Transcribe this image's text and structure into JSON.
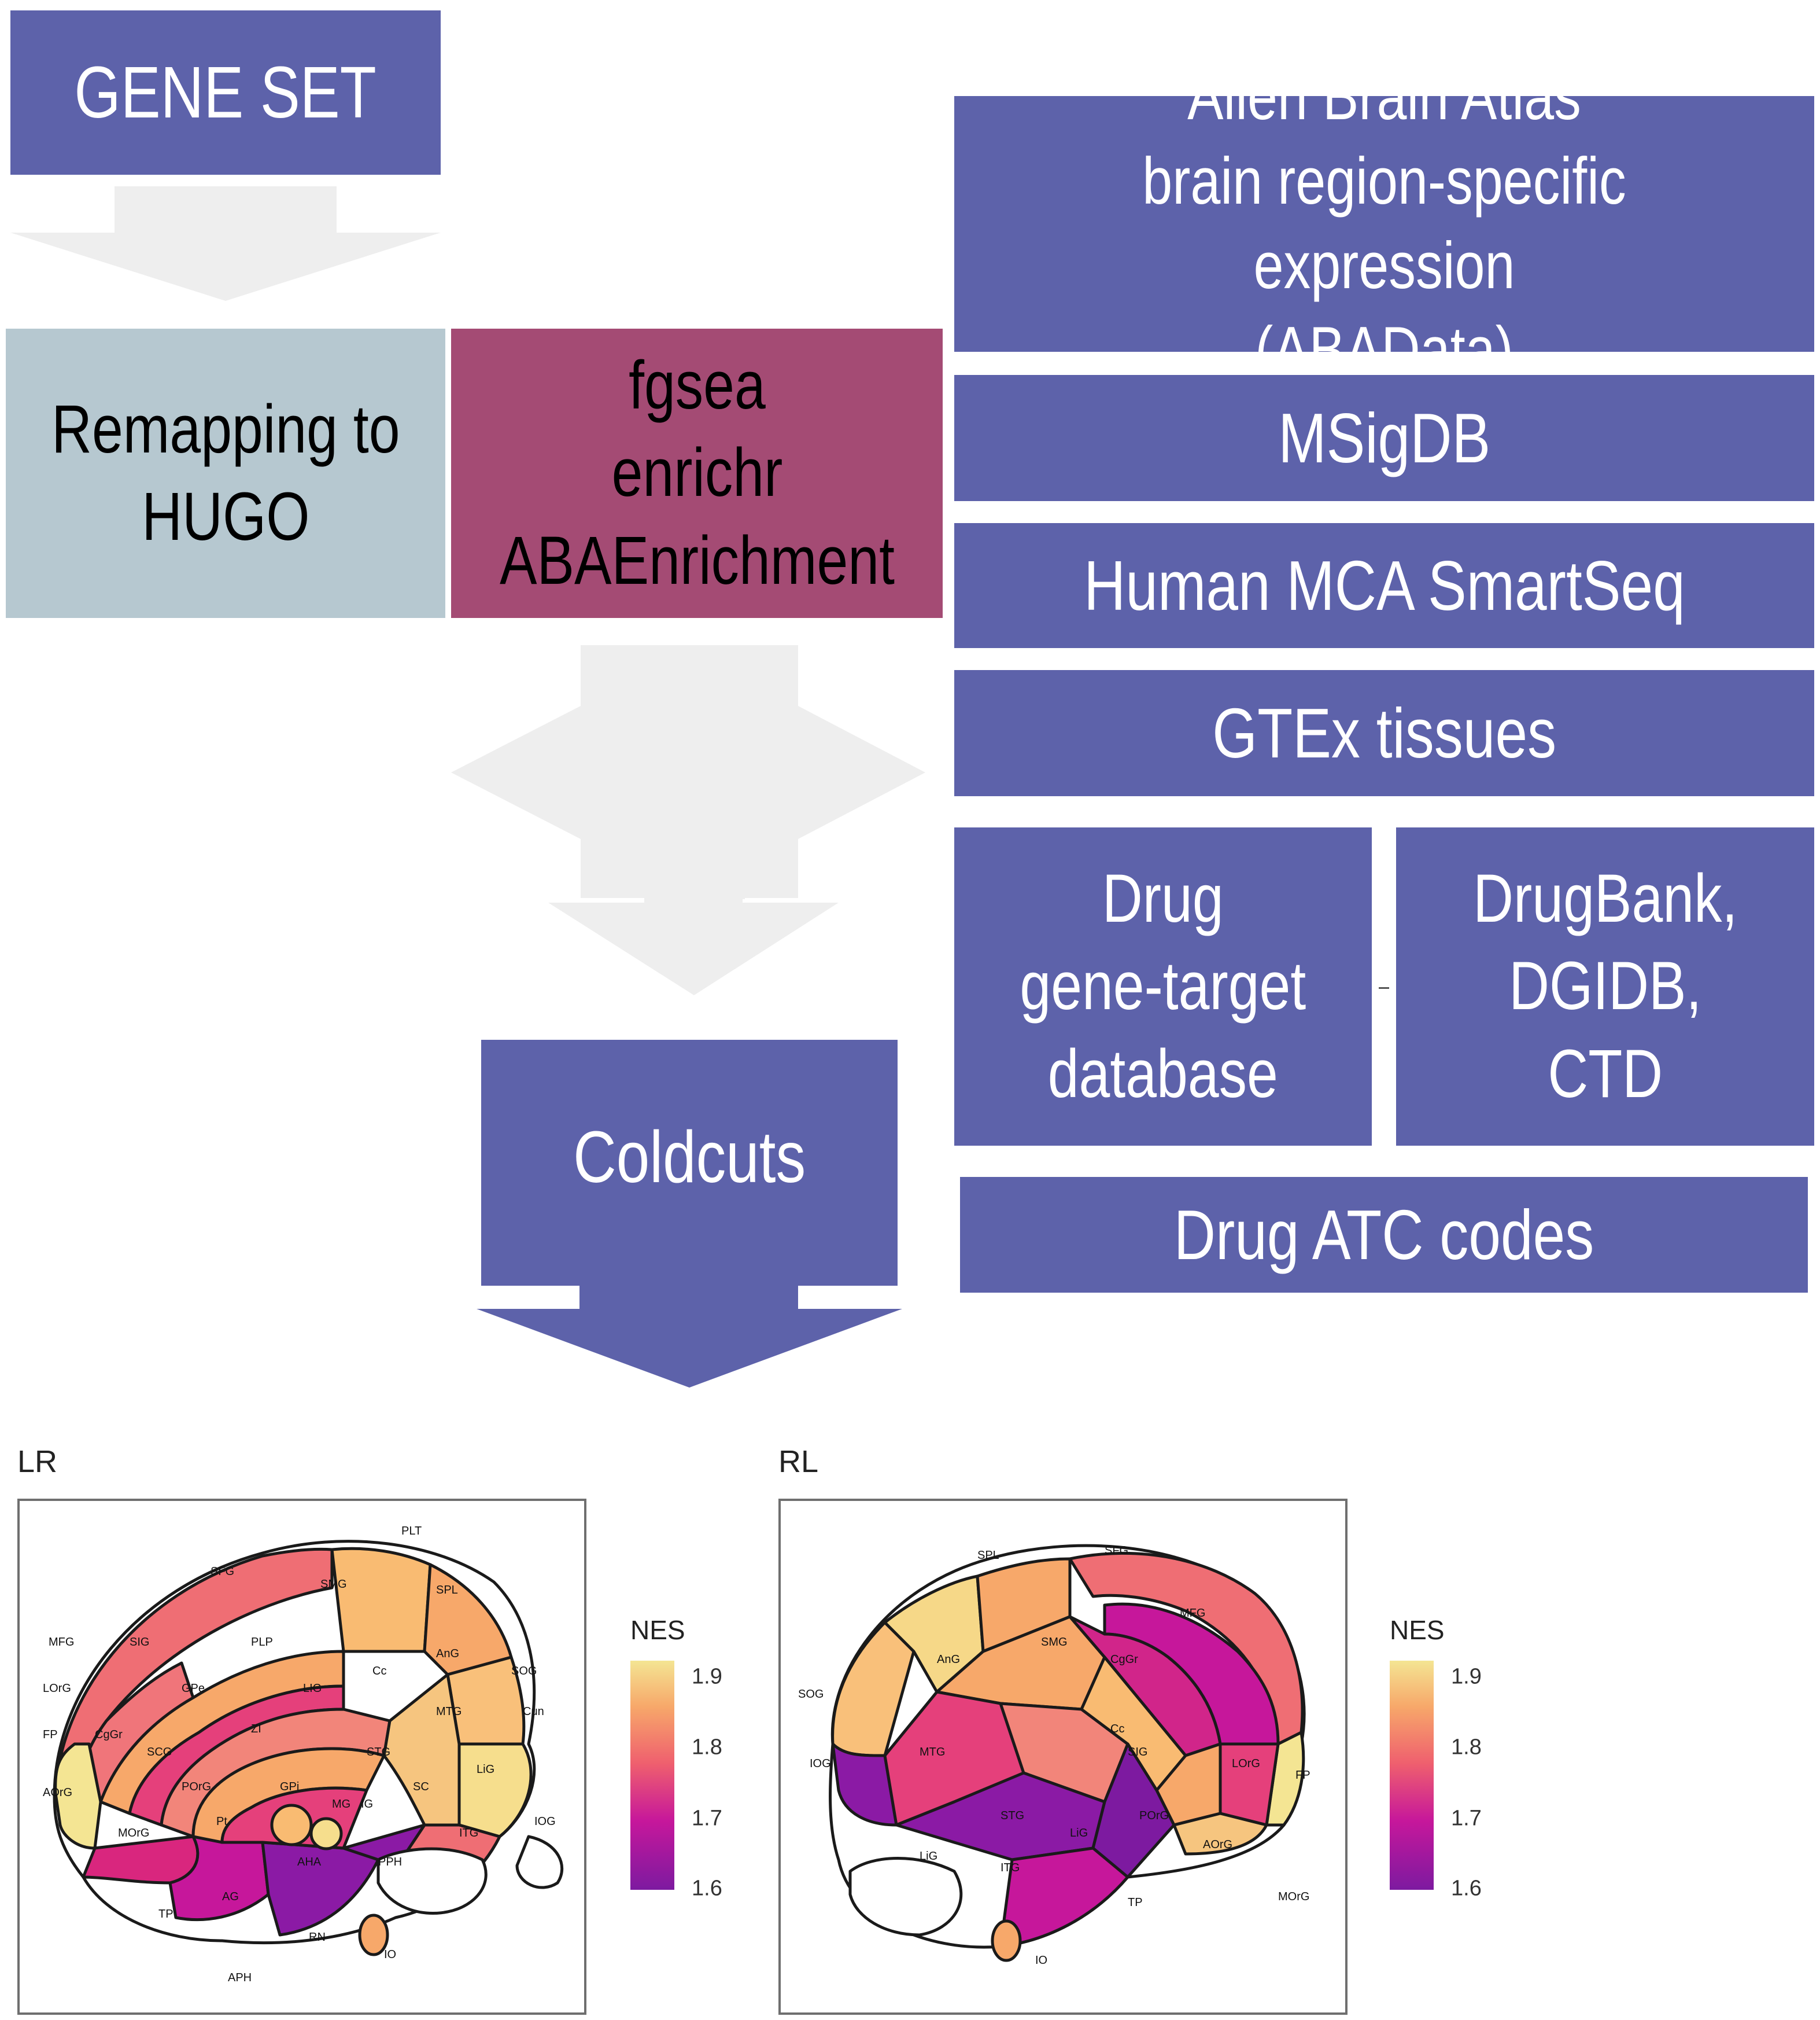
{
  "colors": {
    "purple_box": "#5d62aa",
    "grey_box": "#b6c8d0",
    "wine_box": "#a44b74",
    "light_arrow": "#eeeeee",
    "nes_high": "#f4e593",
    "nes_mid": "#ef5f6e",
    "nes_low": "#7d1aa0"
  },
  "pipeline": {
    "gene_set": "GENE SET",
    "remapping": "Remapping to\nHUGO",
    "tools": "fgsea\nenrichr\nABAEnrichment",
    "coldcuts": "Coldcuts"
  },
  "databases": {
    "aba": "Allen Brain Atlas\nbrain region-specific expression\n(ABAData)",
    "msigdb": "MSigDB",
    "human_mca": "Human MCA SmartSeq",
    "gtex": "GTEx tissues",
    "drug_db": "Drug\ngene-target\ndatabase",
    "drugbank": "DrugBank,\nDGIDB,\nCTD",
    "atc": "Drug ATC codes"
  },
  "panels": {
    "lr": {
      "title": "LR",
      "legend_title": "NES",
      "legend_ticks": [
        "1.9",
        "1.8",
        "1.7",
        "1.6"
      ],
      "regions": [
        "PLT",
        "SFG",
        "SMG",
        "SPL",
        "MFG",
        "SIG",
        "PLP",
        "AnG",
        "LOrG",
        "GPe",
        "LIG",
        "SOG",
        "Cc",
        "Cun",
        "FP",
        "CgGr",
        "SCG",
        "ZI",
        "MTG",
        "POrG",
        "GPi",
        "STG",
        "LiG",
        "AOrG",
        "MG",
        "IG",
        "SC",
        "MOrG",
        "Pt",
        "IOG",
        "AHA",
        "ITG",
        "PPH",
        "TP",
        "AG",
        "RN",
        "IO",
        "APH"
      ]
    },
    "rl": {
      "title": "RL",
      "legend_title": "NES",
      "legend_ticks": [
        "1.9",
        "1.8",
        "1.7",
        "1.6"
      ],
      "regions": [
        "SFG",
        "SPL",
        "MFG",
        "AnG",
        "SMG",
        "CgGr",
        "SOG",
        "IOG",
        "Cc",
        "SIG",
        "MTG",
        "LOrG",
        "FP",
        "STG",
        "POrG",
        "LiG",
        "AOrG",
        "ITG",
        "TP",
        "MOrG",
        "IO"
      ]
    }
  }
}
